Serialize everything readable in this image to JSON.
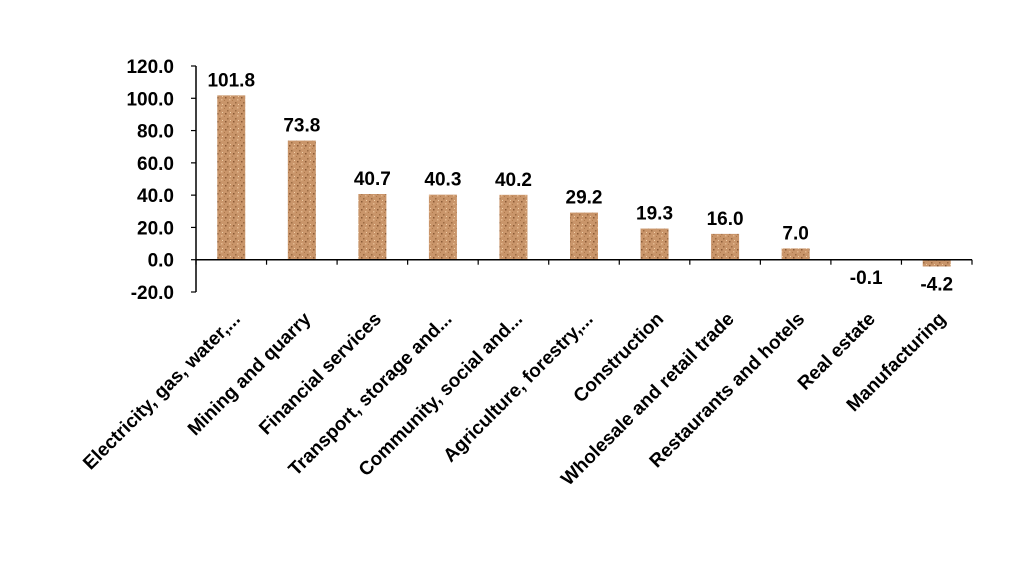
{
  "chart_data": {
    "type": "bar",
    "categories": [
      "Electricity, gas, water,...",
      "Mining and quarry",
      "Financial services",
      "Transport, storage and...",
      "Community, social and...",
      "Agriculture, forestry,...",
      "Construction",
      "Wholesale and retail trade",
      "Restaurants and hotels",
      "Real estate",
      "Manufacturing"
    ],
    "values": [
      101.8,
      73.8,
      40.7,
      40.3,
      40.2,
      29.2,
      19.3,
      16.0,
      7.0,
      -0.1,
      -4.2
    ],
    "value_labels": [
      "101.8",
      "73.8",
      "40.7",
      "40.3",
      "40.2",
      "29.2",
      "19.3",
      "16.0",
      "7.0",
      "-0.1",
      "-4.2"
    ],
    "ylim": [
      -20,
      120
    ],
    "yticks": [
      "-20.0",
      "0.0",
      "20.0",
      "40.0",
      "60.0",
      "80.0",
      "100.0",
      "120.0"
    ],
    "title": "",
    "xlabel": "",
    "ylabel": "",
    "grid": false,
    "bar_color": "#c9956a"
  }
}
